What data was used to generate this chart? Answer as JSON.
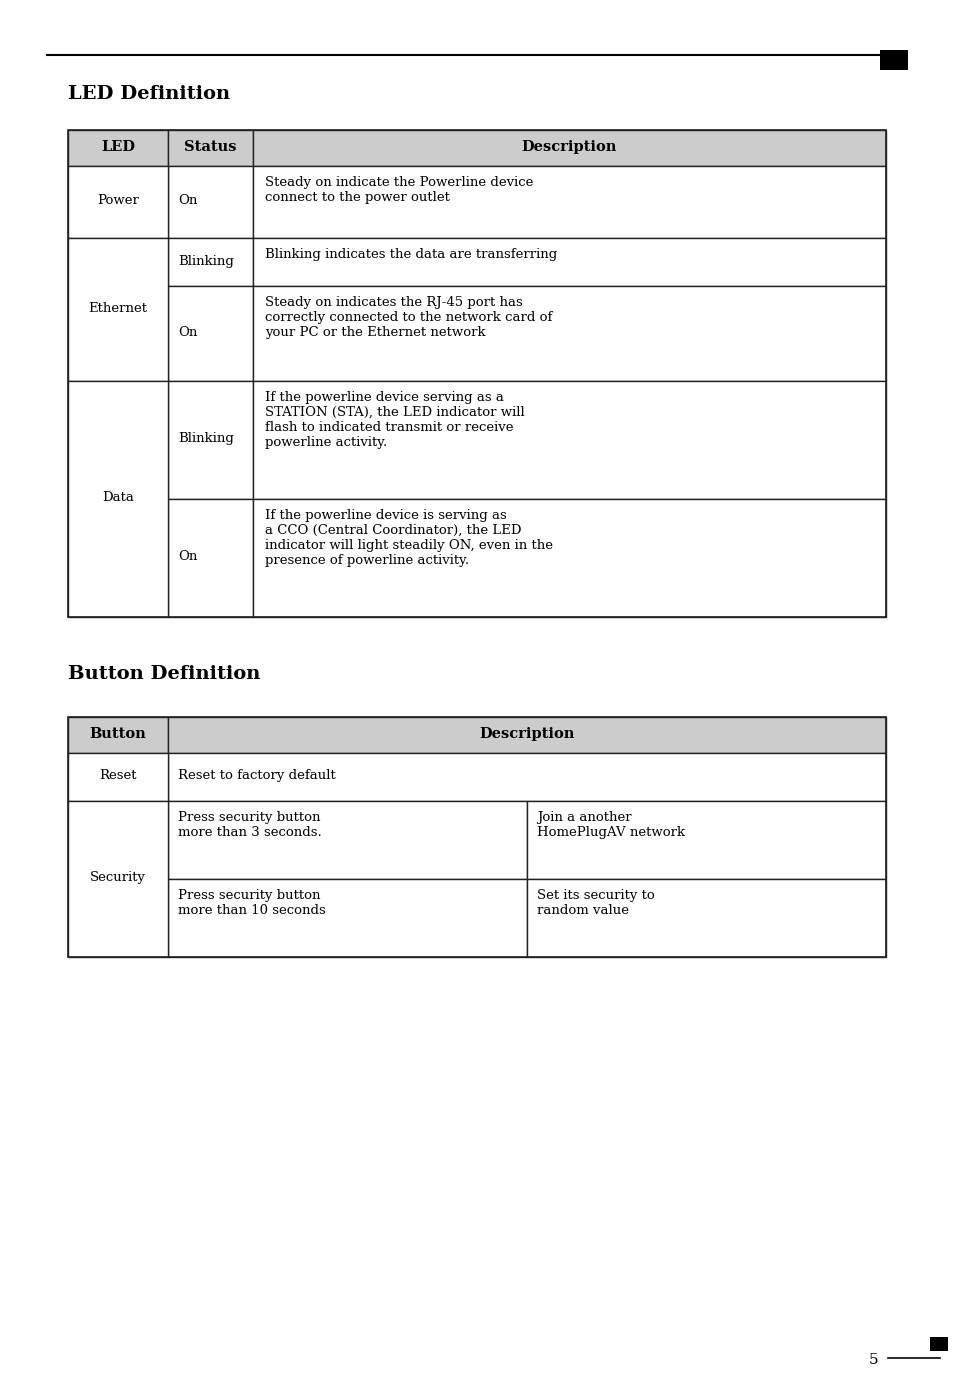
{
  "page_title": "LED Definition",
  "page_title2": "Button Definition",
  "bg_color": "#ffffff",
  "header_bg": "#cccccc",
  "border_color": "#222222",
  "title_fontsize": 14,
  "header_fontsize": 10.5,
  "cell_fontsize": 9.5,
  "page_number": "5",
  "led_table": {
    "headers": [
      "LED",
      "Status",
      "Description"
    ],
    "rows": [
      {
        "led": "Power",
        "status": "On",
        "description": "Steady on indicate the Powerline device\nconnect to the power outlet",
        "led_span": 1
      },
      {
        "led": "Ethernet",
        "status": "Blinking",
        "description": "Blinking indicates the data are transferring",
        "led_span": 2
      },
      {
        "led": "",
        "status": "On",
        "description": "Steady on indicates the RJ-45 port has\ncorrectly connected to the network card of\nyour PC or the Ethernet network",
        "led_span": 0
      },
      {
        "led": "Data",
        "status": "Blinking",
        "description": "If the powerline device serving as a\nSTATION (STA), the LED indicator will\nflash to indicated transmit or receive\npowerline activity.",
        "led_span": 2
      },
      {
        "led": "",
        "status": "On",
        "description": "If the powerline device is serving as\na CCO (Central Coordinator), the LED\nindicator will light steadily ON, even in the\npresence of powerline activity.",
        "led_span": 0
      }
    ]
  },
  "button_table": {
    "headers": [
      "Button",
      "Description"
    ],
    "rows": [
      {
        "button": "Reset",
        "desc_col1": "Reset to factory default",
        "desc_col2": "",
        "button_span": 1,
        "has_subcols": false
      },
      {
        "button": "Security",
        "desc_col1": "Press security button\nmore than 3 seconds.",
        "desc_col2": "Join a another\nHomePlugAV network",
        "button_span": 2,
        "has_subcols": true
      },
      {
        "button": "",
        "desc_col1": "Press security button\nmore than 10 seconds",
        "desc_col2": "Set its security to\nrandom value",
        "button_span": 0,
        "has_subcols": true
      }
    ]
  }
}
